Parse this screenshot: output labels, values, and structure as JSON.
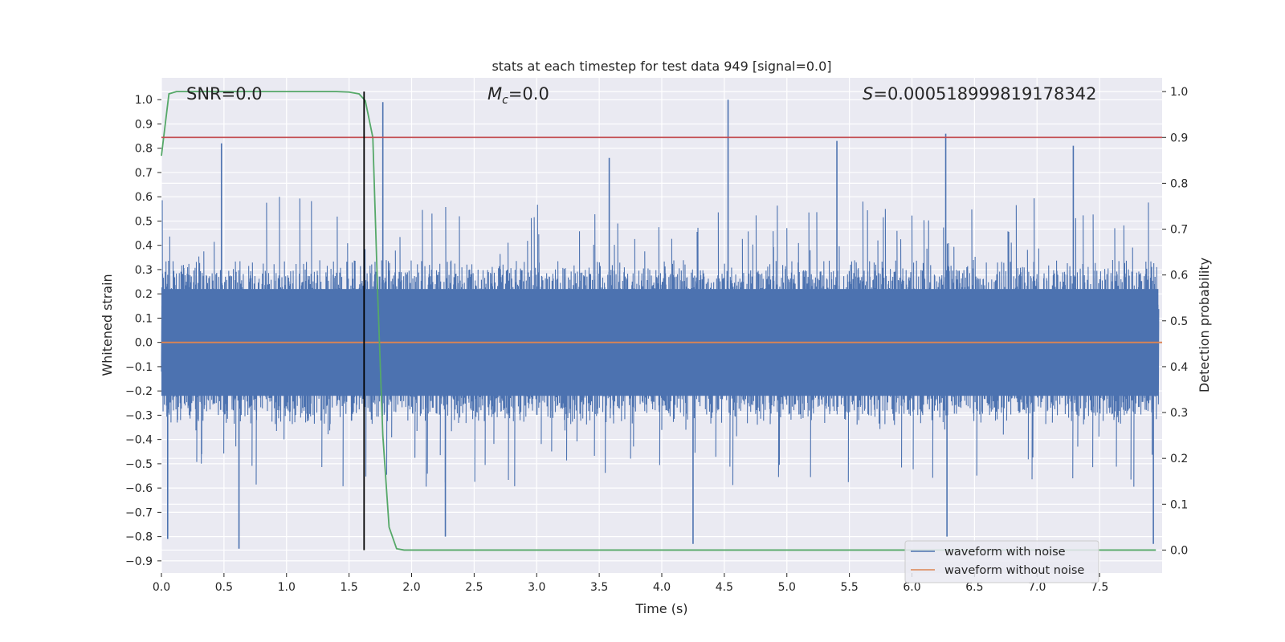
{
  "chart_data": {
    "type": "line",
    "title": "stats at each timestep for test data 949 [signal=0.0]",
    "xlabel": "Time (s)",
    "ylabel_left": "Whitened strain",
    "ylabel_right": "Detection probability",
    "xlim": [
      0.0,
      8.0
    ],
    "ylim_left": [
      -0.95,
      1.09
    ],
    "ylim_right": [
      -0.05,
      1.03
    ],
    "x_ticks": [
      "0.0",
      "0.5",
      "1.0",
      "1.5",
      "2.0",
      "2.5",
      "3.0",
      "3.5",
      "4.0",
      "4.5",
      "5.0",
      "5.5",
      "6.0",
      "6.5",
      "7.0",
      "7.5"
    ],
    "y_left_ticks": [
      "−0.9",
      "−0.8",
      "−0.7",
      "−0.6",
      "−0.5",
      "−0.4",
      "−0.3",
      "−0.2",
      "−0.1",
      "0.0",
      "0.1",
      "0.2",
      "0.3",
      "0.4",
      "0.5",
      "0.6",
      "0.7",
      "0.8",
      "0.9",
      "1.0"
    ],
    "y_right_ticks": [
      "0.0",
      "0.1",
      "0.2",
      "0.3",
      "0.4",
      "0.5",
      "0.6",
      "0.7",
      "0.8",
      "0.9",
      "1.0"
    ],
    "grid": true,
    "legend_position": "bottom-right",
    "annotations": {
      "snr": "SNR=0.0",
      "mc_symbol": "M",
      "mc_sub": "c",
      "mc_value": "=0.0",
      "s_symbol": "S",
      "s_value": "=0.000518999819178342"
    },
    "series": [
      {
        "name": "waveform with noise",
        "axis": "left",
        "color": "#4c72b0",
        "description_values": "dense noise, envelope approx ±0.35 with spikes",
        "spikes": [
          {
            "x": 0.05,
            "y": -0.81
          },
          {
            "x": 0.48,
            "y": 0.82
          },
          {
            "x": 0.62,
            "y": -0.85
          },
          {
            "x": 1.77,
            "y": 0.99
          },
          {
            "x": 2.27,
            "y": -0.8
          },
          {
            "x": 3.58,
            "y": 0.76
          },
          {
            "x": 4.25,
            "y": -0.83
          },
          {
            "x": 4.53,
            "y": 1.0
          },
          {
            "x": 5.4,
            "y": 0.83
          },
          {
            "x": 6.27,
            "y": 0.86
          },
          {
            "x": 6.28,
            "y": -0.8
          },
          {
            "x": 7.29,
            "y": 0.81
          },
          {
            "x": 7.93,
            "y": -0.83
          }
        ]
      },
      {
        "name": "waveform without noise",
        "axis": "left",
        "color": "#dd8452",
        "x": [
          0.0,
          8.0
        ],
        "y": [
          0.0,
          0.0
        ]
      },
      {
        "name": "detection probability",
        "axis": "right",
        "color": "#55a868",
        "x": [
          0.0,
          0.06,
          0.12,
          0.3,
          0.6,
          1.0,
          1.4,
          1.5,
          1.58,
          1.63,
          1.69,
          1.73,
          1.77,
          1.82,
          1.88,
          1.94,
          2.1,
          4.0,
          6.0,
          7.95
        ],
        "y": [
          0.86,
          0.995,
          1.0,
          1.0,
          1.0,
          1.0,
          1.0,
          0.999,
          0.995,
          0.98,
          0.9,
          0.55,
          0.25,
          0.05,
          0.003,
          0.0,
          0.0,
          0.0,
          0.0,
          0.0
        ]
      },
      {
        "name": "threshold",
        "axis": "right",
        "color": "#c44e52",
        "x": [
          0.0,
          8.0
        ],
        "y": [
          0.9,
          0.9
        ]
      },
      {
        "name": "marker",
        "axis": "right",
        "color": "#000000",
        "x": [
          1.62,
          1.62
        ],
        "y": [
          0.0,
          1.0
        ]
      }
    ]
  }
}
